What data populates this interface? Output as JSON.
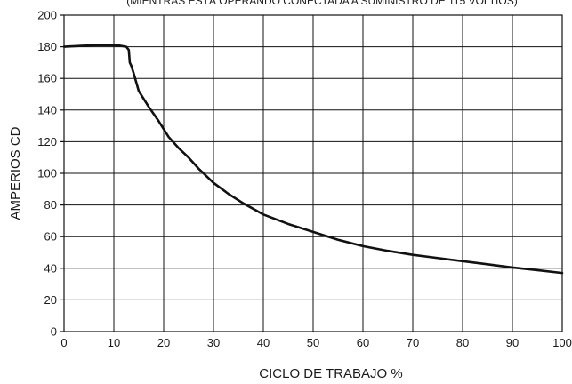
{
  "chart_data": {
    "type": "line",
    "title": "",
    "caption": "(MIENTRAS ESTÁ OPERANDO CONECTADA A SUMINISTRO DE 115 VOLTIOS)",
    "xlabel": "CICLO DE TRABAJO %",
    "ylabel": "AMPERIOS CD",
    "xlim": [
      0,
      100
    ],
    "ylim": [
      0,
      200
    ],
    "x_ticks": [
      0,
      10,
      20,
      30,
      40,
      50,
      60,
      70,
      80,
      90,
      100
    ],
    "y_ticks": [
      0,
      20,
      40,
      60,
      80,
      100,
      120,
      140,
      160,
      180,
      200
    ],
    "grid": true,
    "legend": "none",
    "line_color": "#111111",
    "series": [
      {
        "x": [
          0,
          3,
          6,
          9,
          11,
          12.5,
          13,
          13.2,
          13.5,
          14,
          15,
          17,
          19,
          21,
          23,
          25,
          27,
          30,
          33,
          36,
          40,
          45,
          50,
          55,
          60,
          65,
          70,
          75,
          80,
          85,
          90,
          95,
          100
        ],
        "values": [
          180,
          180.5,
          181,
          181,
          180.8,
          180,
          178,
          170,
          168,
          163,
          152,
          142,
          133,
          123,
          116,
          110,
          103,
          94,
          87,
          81,
          74,
          68,
          63,
          58,
          54,
          51,
          48.5,
          46.5,
          44.5,
          42.5,
          40.5,
          38.8,
          37
        ]
      }
    ]
  }
}
